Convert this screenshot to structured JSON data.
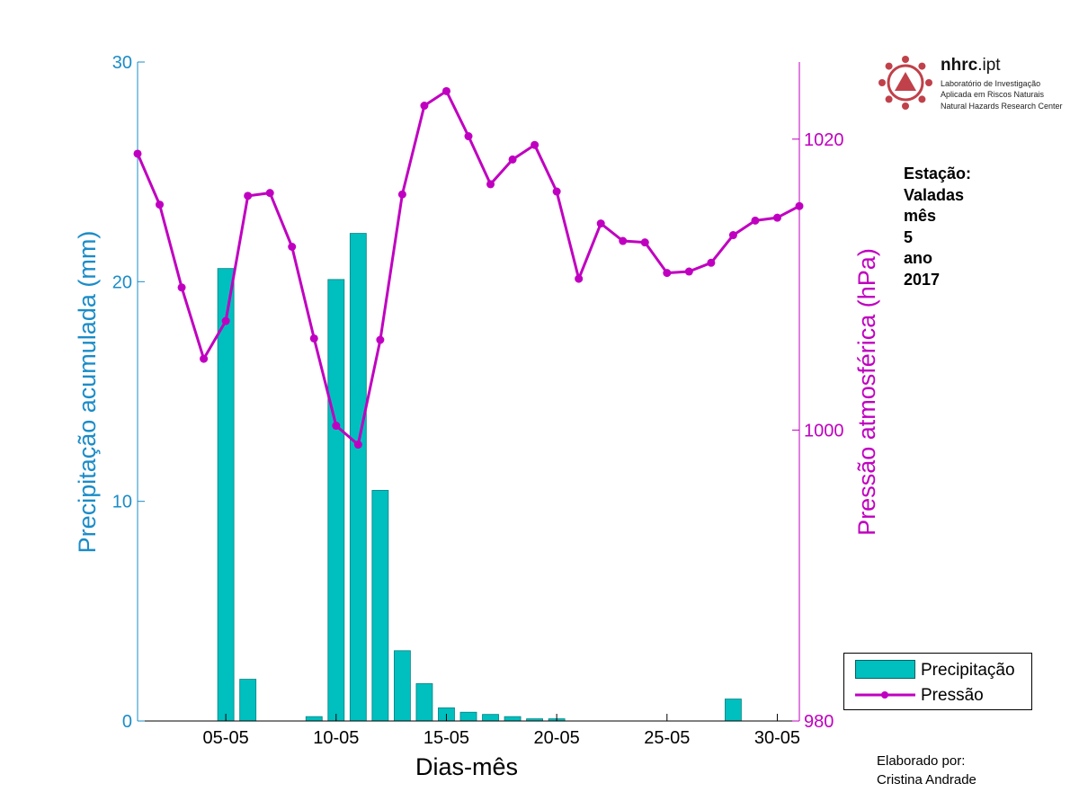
{
  "chart_data": {
    "type": "bar+line",
    "xlabel": "Dias-mês",
    "x_tick_labels": [
      "05-05",
      "10-05",
      "15-05",
      "20-05",
      "25-05",
      "30-05"
    ],
    "x_tick_days": [
      5,
      10,
      15,
      20,
      25,
      30
    ],
    "x_range": [
      1,
      31
    ],
    "days": [
      1,
      2,
      3,
      4,
      5,
      6,
      7,
      8,
      9,
      10,
      11,
      12,
      13,
      14,
      15,
      16,
      17,
      18,
      19,
      20,
      21,
      22,
      23,
      24,
      25,
      26,
      27,
      28,
      29,
      30,
      31
    ],
    "left_axis": {
      "label": "Precipitação acumulada (mm)",
      "ylim": [
        0,
        30
      ],
      "ticks": [
        0,
        10,
        20,
        30
      ],
      "tick_labels": [
        "0",
        "10",
        "20",
        "30"
      ],
      "color": "#1a8cc8"
    },
    "right_axis": {
      "label": "Pressão atmosférica (hPa)",
      "ylim": [
        980,
        1025.3
      ],
      "ticks": [
        980,
        1000,
        1020
      ],
      "tick_labels": [
        "980",
        "1000",
        "1020"
      ],
      "color": "#c000c0"
    },
    "series": [
      {
        "name": "Precipitação",
        "type": "bar",
        "axis": "left",
        "color": "#00bfbf",
        "values": [
          0,
          0,
          0,
          0,
          20.6,
          1.9,
          0,
          0,
          0.2,
          20.1,
          22.2,
          10.5,
          3.2,
          1.7,
          0.6,
          0.4,
          0.3,
          0.2,
          0.1,
          0.1,
          0,
          0,
          0,
          0,
          0,
          0,
          0,
          1.0,
          0,
          0,
          0
        ]
      },
      {
        "name": "Pressão",
        "type": "line",
        "axis": "right",
        "color": "#c000c0",
        "values": [
          1019.0,
          1015.5,
          1009.8,
          1004.9,
          1007.5,
          1016.1,
          1016.3,
          1012.6,
          1006.3,
          1000.3,
          999.0,
          1006.2,
          1016.2,
          1022.3,
          1023.3,
          1020.2,
          1016.9,
          1018.6,
          1019.6,
          1016.4,
          1010.4,
          1014.2,
          1013.0,
          1012.9,
          1010.8,
          1010.9,
          1011.5,
          1013.4,
          1014.4,
          1014.6,
          1015.4
        ]
      }
    ],
    "legend": {
      "placement": "bottom-right",
      "entries": [
        "Precipitação",
        "Pressão"
      ]
    }
  },
  "station": {
    "heading": "Estação:",
    "name": "Valadas",
    "month_label": "mês",
    "month": "5",
    "year_label": "ano",
    "year": "2017"
  },
  "credit": {
    "label": "Elaborado por:",
    "author": "Cristina Andrade"
  },
  "logo": {
    "title_bold": "nhrc",
    "title_rest": ".ipt",
    "line1": "Laboratório de Investigação",
    "line2": "Aplicada em Riscos Naturais",
    "line3": "Natural Hazards Research Center",
    "color": "#c0414a"
  }
}
